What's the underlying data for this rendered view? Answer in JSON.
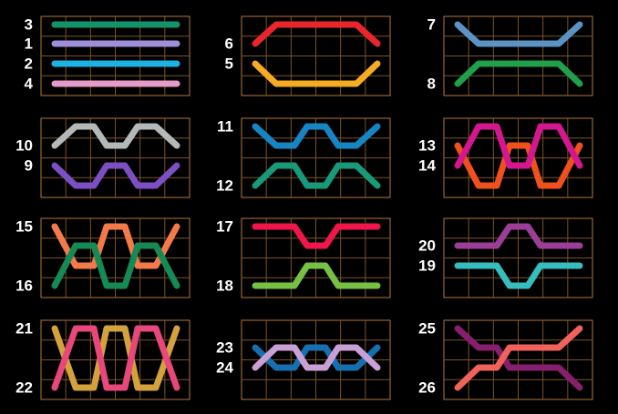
{
  "panels": [
    {
      "lines": [
        {
          "label": "3",
          "color": "#14936a"
        },
        {
          "label": "1",
          "color": "#9d8fd9"
        },
        {
          "label": "2",
          "color": "#1cb2e3"
        },
        {
          "label": "4",
          "color": "#e79bc9"
        }
      ]
    },
    {
      "lines": [
        {
          "label": "6",
          "color": "#e8262c"
        },
        {
          "label": "5",
          "color": "#f5ac22"
        }
      ]
    },
    {
      "lines": [
        {
          "label": "7",
          "color": "#5a93c4"
        },
        {
          "label": "8",
          "color": "#20a04a"
        }
      ]
    },
    {
      "lines": [
        {
          "label": "10",
          "color": "#b3b8b8"
        },
        {
          "label": "9",
          "color": "#7d4fc4"
        }
      ]
    },
    {
      "lines": [
        {
          "label": "11",
          "color": "#1685c4"
        },
        {
          "label": "12",
          "color": "#17997a"
        }
      ]
    },
    {
      "lines": [
        {
          "label": "13",
          "color": "#f0501e"
        },
        {
          "label": "14",
          "color": "#d3178e"
        }
      ]
    },
    {
      "lines": [
        {
          "label": "15",
          "color": "#f57a4a"
        },
        {
          "label": "16",
          "color": "#168a55"
        }
      ]
    },
    {
      "lines": [
        {
          "label": "17",
          "color": "#f0164a"
        },
        {
          "label": "18",
          "color": "#76c043"
        }
      ]
    },
    {
      "lines": [
        {
          "label": "20",
          "color": "#9a3e97"
        },
        {
          "label": "19",
          "color": "#36bdbd"
        }
      ]
    },
    {
      "lines": [
        {
          "label": "21",
          "color": "#d4a23c"
        },
        {
          "label": "22",
          "color": "#e8477c"
        }
      ]
    },
    {
      "lines": [
        {
          "label": "23",
          "color": "#1670b0"
        },
        {
          "label": "24",
          "color": "#c9a0d6"
        }
      ]
    },
    {
      "lines": [
        {
          "label": "25",
          "color": "#861f6e"
        },
        {
          "label": "26",
          "color": "#f0625a"
        }
      ]
    }
  ]
}
